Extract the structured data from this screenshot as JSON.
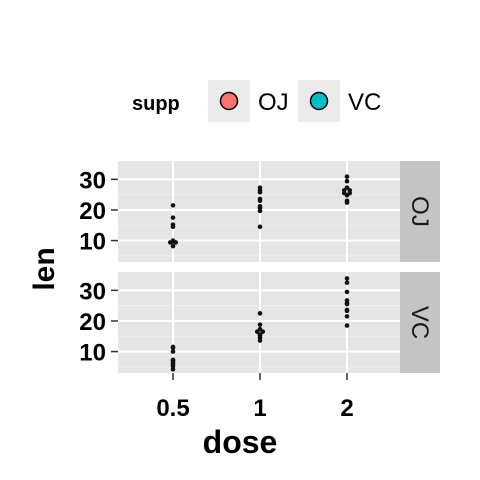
{
  "chart_data": {
    "type": "scatter",
    "subtype": "dotplot-faceted",
    "xlabel": "dose",
    "ylabel": "len",
    "categories": [
      "0.5",
      "1",
      "2"
    ],
    "yticks": [
      10,
      20,
      30
    ],
    "ylim": [
      3,
      36
    ],
    "grid": true,
    "legend": {
      "title": "supp",
      "position": "top",
      "entries": [
        {
          "label": "OJ",
          "color": "#F8766D"
        },
        {
          "label": "VC",
          "color": "#00BFC4"
        }
      ]
    },
    "facets": [
      {
        "label": "OJ",
        "series": [
          {
            "x": "0.5",
            "values": [
              21.5,
              17.5,
              15.2,
              14.5,
              10.0,
              9.7,
              9.4,
              9.4,
              8.2
            ]
          },
          {
            "x": "1",
            "values": [
              27.3,
              26.4,
              25.8,
              23.6,
              23.0,
              21.2,
              20.7,
              19.7,
              14.5
            ]
          },
          {
            "x": "2",
            "values": [
              30.9,
              29.4,
              27.3,
              26.4,
              26.4,
              25.5,
              25.5,
              24.8,
              23.0,
              22.4
            ]
          }
        ]
      },
      {
        "label": "VC",
        "series": [
          {
            "x": "0.5",
            "values": [
              11.5,
              11.2,
              10.0,
              7.3,
              7.0,
              6.4,
              5.8,
              5.2,
              4.2
            ]
          },
          {
            "x": "1",
            "values": [
              22.5,
              18.8,
              17.3,
              16.5,
              16.5,
              15.5,
              15.2,
              14.5,
              13.6
            ]
          },
          {
            "x": "2",
            "values": [
              33.9,
              32.5,
              29.5,
              26.7,
              25.8,
              25.5,
              23.6,
              23.3,
              21.5,
              18.5
            ]
          }
        ]
      }
    ]
  }
}
